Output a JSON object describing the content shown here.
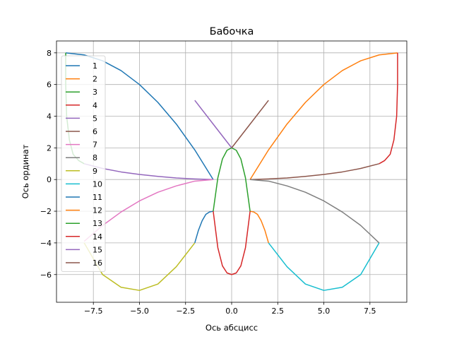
{
  "chart_data": {
    "type": "line",
    "title": "Бабочка",
    "xlabel": "Ось абсцисс",
    "ylabel": "Ось ординат",
    "xlim": [
      -9.5,
      9.5
    ],
    "ylim": [
      -7.75,
      8.75
    ],
    "grid": true,
    "legend_position": "upper-left",
    "x_ticks": [
      -7.5,
      -5.0,
      -2.5,
      0.0,
      2.5,
      5.0,
      7.5
    ],
    "x_tick_labels": [
      "−7.5",
      "−5.0",
      "−2.5",
      "0.0",
      "2.5",
      "5.0",
      "7.5"
    ],
    "y_ticks": [
      -6,
      -4,
      -2,
      0,
      2,
      4,
      6,
      8
    ],
    "y_tick_labels": [
      "−6",
      "−4",
      "−2",
      "0",
      "2",
      "4",
      "6",
      "8"
    ],
    "series": [
      {
        "name": "1",
        "color": "#1f77b4",
        "x": [
          -9,
          -8,
          -7,
          -6,
          -5,
          -4,
          -3,
          -2,
          -1
        ],
        "y": [
          8,
          7.87,
          7.5,
          6.88,
          6.0,
          4.87,
          3.5,
          1.87,
          0
        ]
      },
      {
        "name": "2",
        "color": "#ff7f0e",
        "x": [
          1,
          2,
          3,
          4,
          5,
          6,
          7,
          8,
          9
        ],
        "y": [
          0,
          1.87,
          3.5,
          4.87,
          6.0,
          6.88,
          7.5,
          7.87,
          8
        ]
      },
      {
        "name": "3",
        "color": "#2ca02c",
        "x": [
          -9,
          -9,
          -8.95,
          -8.8,
          -8.6,
          -8.3,
          -8.0
        ],
        "y": [
          8,
          6,
          4,
          2.5,
          1.6,
          1.2,
          1.0
        ]
      },
      {
        "name": "4",
        "color": "#d62728",
        "x": [
          9,
          9,
          8.95,
          8.8,
          8.6,
          8.3,
          8.0
        ],
        "y": [
          8,
          6,
          4,
          2.5,
          1.6,
          1.2,
          1.0
        ]
      },
      {
        "name": "5",
        "color": "#9467bd",
        "x": [
          -8,
          -7,
          -6,
          -5,
          -4,
          -3,
          -2,
          -1
        ],
        "y": [
          1.0,
          0.7,
          0.48,
          0.32,
          0.2,
          0.1,
          0.04,
          0
        ]
      },
      {
        "name": "6",
        "color": "#8c564b",
        "x": [
          1,
          2,
          3,
          4,
          5,
          6,
          7,
          8
        ],
        "y": [
          0,
          0.04,
          0.1,
          0.2,
          0.32,
          0.48,
          0.7,
          1.0
        ]
      },
      {
        "name": "7",
        "color": "#e377c2",
        "x": [
          -1,
          -2,
          -3,
          -4,
          -5,
          -6,
          -7,
          -8
        ],
        "y": [
          0,
          -0.1,
          -0.4,
          -0.8,
          -1.35,
          -2.05,
          -2.9,
          -3.9
        ]
      },
      {
        "name": "8",
        "color": "#7f7f7f",
        "x": [
          1,
          2,
          3,
          4,
          5,
          6,
          7,
          8
        ],
        "y": [
          0,
          -0.1,
          -0.4,
          -0.8,
          -1.35,
          -2.05,
          -2.9,
          -4.0
        ]
      },
      {
        "name": "9",
        "color": "#bcbd22",
        "x": [
          -8,
          -7,
          -6,
          -5,
          -4,
          -3,
          -2
        ],
        "y": [
          -4.0,
          -6.0,
          -6.8,
          -7.0,
          -6.6,
          -5.5,
          -4.0
        ]
      },
      {
        "name": "10",
        "color": "#17becf",
        "x": [
          2,
          3,
          4,
          5,
          6,
          7,
          8
        ],
        "y": [
          -4.0,
          -5.5,
          -6.6,
          -7.0,
          -6.8,
          -6.0,
          -4.0
        ]
      },
      {
        "name": "11",
        "color": "#1f77b4",
        "x": [
          -2,
          -1.8,
          -1.6,
          -1.4,
          -1.2,
          -1
        ],
        "y": [
          -4.0,
          -3.2,
          -2.6,
          -2.2,
          -2.05,
          -2.0
        ]
      },
      {
        "name": "12",
        "color": "#ff7f0e",
        "x": [
          1,
          1.2,
          1.4,
          1.6,
          1.8,
          2
        ],
        "y": [
          -2.0,
          -2.05,
          -2.2,
          -2.6,
          -3.2,
          -4.0
        ]
      },
      {
        "name": "13",
        "color": "#2ca02c",
        "x": [
          -1,
          -0.75,
          -0.5,
          -0.25,
          0,
          0.25,
          0.5,
          0.75,
          1
        ],
        "y": [
          -2.0,
          0.1,
          1.3,
          1.85,
          2.0,
          1.85,
          1.3,
          0.1,
          -2.0
        ]
      },
      {
        "name": "14",
        "color": "#d62728",
        "x": [
          -1,
          -0.75,
          -0.5,
          -0.25,
          0,
          0.25,
          0.5,
          0.75,
          1
        ],
        "y": [
          -2.0,
          -4.3,
          -5.45,
          -5.9,
          -6.0,
          -5.9,
          -5.45,
          -4.3,
          -2.0
        ]
      },
      {
        "name": "15",
        "color": "#9467bd",
        "x": [
          -2,
          -1,
          0
        ],
        "y": [
          5,
          3.5,
          2
        ]
      },
      {
        "name": "16",
        "color": "#8c564b",
        "x": [
          0,
          1,
          2
        ],
        "y": [
          2,
          3.5,
          5
        ]
      }
    ]
  }
}
